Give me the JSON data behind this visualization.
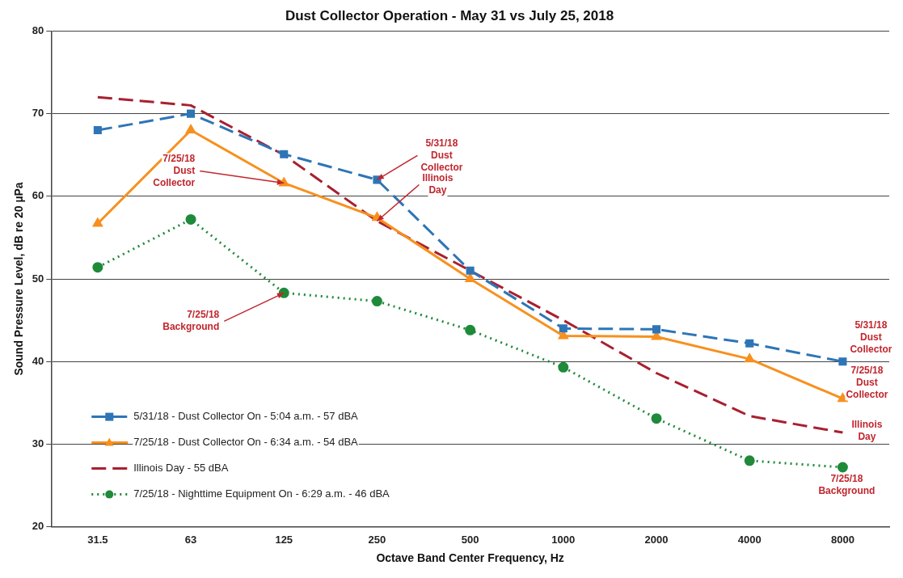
{
  "chart_data": {
    "type": "line",
    "title": "Dust Collector Operation - May 31 vs July 25, 2018",
    "xlabel": "Octave Band Center Frequency, Hz",
    "ylabel": "Sound Pressure Level, dB re 20 µPa",
    "categories": [
      "31.5",
      "63",
      "125",
      "250",
      "500",
      "1000",
      "2000",
      "4000",
      "8000"
    ],
    "series": [
      {
        "name": "5/31/18 - Dust Collector On - 5:04 a.m. - 57 dBA",
        "color": "#2e75b6",
        "line_style": "dashed",
        "marker": "square",
        "values": [
          68.0,
          70.0,
          65.1,
          62.0,
          51.0,
          44.0,
          43.9,
          42.2,
          40.0
        ]
      },
      {
        "name": "7/25/18 - Dust Collector On - 6:34 a.m. - 54 dBA",
        "color": "#f7901e",
        "line_style": "solid",
        "marker": "triangle",
        "values": [
          56.7,
          68.0,
          61.6,
          57.4,
          50.0,
          43.1,
          43.0,
          40.3,
          35.5
        ]
      },
      {
        "name": "Illinois Day - 55 dBA",
        "color": "#a8202f",
        "line_style": "dashed",
        "marker": "none",
        "values": [
          72.0,
          71.0,
          65.0,
          57.0,
          51.0,
          45.0,
          38.6,
          33.4,
          31.4
        ]
      },
      {
        "name": "7/25/18 - Nighttime Equipment On - 6:29 a.m. - 46 dBA",
        "color": "#1f8a3a",
        "line_style": "dotted",
        "marker": "circle",
        "values": [
          51.4,
          57.2,
          48.3,
          47.3,
          43.8,
          39.3,
          33.1,
          28.0,
          27.2
        ]
      }
    ],
    "ylim": [
      20,
      80
    ],
    "yticks": [
      20,
      30,
      40,
      50,
      60,
      70,
      80
    ],
    "grid": "y",
    "legend": "bottom left",
    "annotations": [
      {
        "text": "7/25/18 Dust Collector",
        "x": "125",
        "y": 61.6
      },
      {
        "text": "5/31/18 Dust Collector",
        "x": "250",
        "y": 62.0
      },
      {
        "text": "Illinois Day",
        "x": "250",
        "y": 57.0
      },
      {
        "text": "7/25/18 Background",
        "x": "125",
        "y": 48.3
      },
      {
        "text": "5/31/18 Dust Collector",
        "x": "8000",
        "y": 40.0
      },
      {
        "text": "7/25/18 Dust Collector",
        "x": "8000",
        "y": 35.5
      },
      {
        "text": "Illinois Day",
        "x": "8000",
        "y": 31.4
      },
      {
        "text": "7/25/18 Background",
        "x": "8000",
        "y": 27.2
      }
    ]
  }
}
